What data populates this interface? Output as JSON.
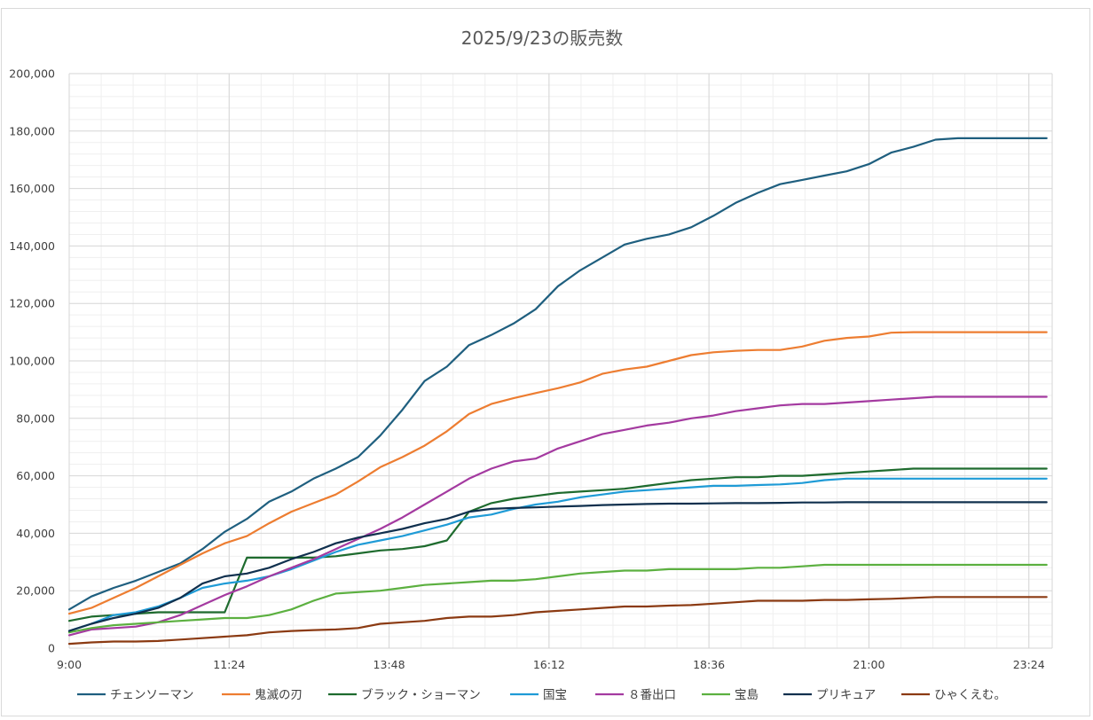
{
  "chart_data": {
    "type": "line",
    "title": "2025/9/23の販売数",
    "xlabel": "",
    "ylabel": "",
    "ylim": [
      0,
      200000
    ],
    "yticks": [
      0,
      20000,
      40000,
      60000,
      80000,
      100000,
      120000,
      140000,
      160000,
      180000,
      200000
    ],
    "ytick_labels": [
      "0",
      "20,000",
      "40,000",
      "60,000",
      "80,000",
      "100,000",
      "120,000",
      "140,000",
      "160,000",
      "180,000",
      "200,000"
    ],
    "xlim": [
      "9:00",
      "23:45"
    ],
    "xticks": [
      "9:00",
      "11:24",
      "13:48",
      "16:12",
      "18:36",
      "21:00",
      "23:24"
    ],
    "grid": true,
    "legend_position": "bottom",
    "x": [
      "9:00",
      "9:20",
      "9:40",
      "10:00",
      "10:20",
      "10:40",
      "11:00",
      "11:20",
      "11:40",
      "12:00",
      "12:20",
      "12:40",
      "13:00",
      "13:20",
      "13:40",
      "14:00",
      "14:20",
      "14:40",
      "15:00",
      "15:20",
      "15:40",
      "16:00",
      "16:20",
      "16:40",
      "17:00",
      "17:20",
      "17:40",
      "18:00",
      "18:20",
      "18:40",
      "19:00",
      "19:20",
      "19:40",
      "20:00",
      "20:20",
      "20:40",
      "21:00",
      "21:20",
      "21:40",
      "22:00",
      "22:20",
      "22:40",
      "23:00",
      "23:20",
      "23:40"
    ],
    "series": [
      {
        "name": "チェンソーマン",
        "color": "#1f5f7f",
        "values": [
          13500,
          18000,
          21000,
          23500,
          26500,
          29500,
          34500,
          40500,
          45000,
          51000,
          54500,
          59000,
          62500,
          66500,
          74000,
          83000,
          93000,
          98000,
          105500,
          109000,
          113000,
          118000,
          126000,
          131500,
          136000,
          140500,
          142500,
          144000,
          146500,
          150500,
          155000,
          158500,
          161500,
          163000,
          164500,
          166000,
          168500,
          172500,
          174500,
          177000,
          177500,
          177500,
          177500,
          177500,
          177500
        ]
      },
      {
        "name": "鬼滅の刃",
        "color": "#ed7d31",
        "values": [
          12000,
          14000,
          17500,
          21000,
          25000,
          29000,
          33000,
          36500,
          39000,
          43500,
          47500,
          50500,
          53500,
          58000,
          63000,
          66500,
          70500,
          75500,
          81500,
          85000,
          87000,
          88800,
          90500,
          92500,
          95500,
          97000,
          98000,
          100000,
          102000,
          103000,
          103500,
          103800,
          103800,
          105000,
          107000,
          108000,
          108500,
          109800,
          110000,
          110000,
          110000,
          110000,
          110000,
          110000,
          110000
        ]
      },
      {
        "name": "ブラック・ショーマン",
        "color": "#1e6b2e",
        "values": [
          9500,
          11000,
          11500,
          12000,
          12500,
          12500,
          12500,
          12500,
          31500,
          31500,
          31500,
          31500,
          32000,
          33000,
          34000,
          34500,
          35500,
          37500,
          47500,
          50500,
          52000,
          53000,
          54000,
          54500,
          55000,
          55500,
          56500,
          57500,
          58500,
          59000,
          59500,
          59500,
          60000,
          60000,
          60500,
          61000,
          61500,
          62000,
          62500,
          62500,
          62500,
          62500,
          62500,
          62500,
          62500
        ]
      },
      {
        "name": "国宝",
        "color": "#1f9bd6",
        "values": [
          6000,
          8500,
          11500,
          12500,
          14500,
          17500,
          21000,
          22500,
          23500,
          25000,
          27500,
          30500,
          33500,
          36000,
          37500,
          39000,
          41000,
          43000,
          45500,
          46500,
          48500,
          50000,
          51000,
          52500,
          53500,
          54500,
          55000,
          55500,
          56000,
          56500,
          56500,
          56800,
          57000,
          57500,
          58500,
          59000,
          59000,
          59000,
          59000,
          59000,
          59000,
          59000,
          59000,
          59000,
          59000
        ]
      },
      {
        "name": "８番出口",
        "color": "#a43aa0",
        "values": [
          4500,
          6500,
          7000,
          7500,
          9000,
          11500,
          15000,
          18500,
          21500,
          25000,
          28000,
          31000,
          34500,
          38000,
          41500,
          45500,
          50000,
          54500,
          59000,
          62500,
          65000,
          66000,
          69500,
          72000,
          74500,
          76000,
          77500,
          78500,
          80000,
          81000,
          82500,
          83500,
          84500,
          85000,
          85000,
          85500,
          86000,
          86500,
          87000,
          87500,
          87500,
          87500,
          87500,
          87500,
          87500
        ]
      },
      {
        "name": "宝島",
        "color": "#5cb040",
        "values": [
          5500,
          7000,
          8000,
          8500,
          9000,
          9500,
          10000,
          10500,
          10500,
          11500,
          13500,
          16500,
          19000,
          19500,
          20000,
          21000,
          22000,
          22500,
          23000,
          23500,
          23500,
          24000,
          25000,
          26000,
          26500,
          27000,
          27000,
          27500,
          27500,
          27500,
          27500,
          28000,
          28000,
          28500,
          29000,
          29000,
          29000,
          29000,
          29000,
          29000,
          29000,
          29000,
          29000,
          29000,
          29000
        ]
      },
      {
        "name": "プリキュア",
        "color": "#10304e",
        "values": [
          6000,
          8500,
          10500,
          12000,
          14000,
          17500,
          22500,
          25000,
          26000,
          28000,
          31000,
          33500,
          36500,
          38500,
          40000,
          41500,
          43500,
          45000,
          47500,
          48500,
          48800,
          49000,
          49300,
          49500,
          49800,
          50000,
          50200,
          50300,
          50300,
          50400,
          50500,
          50500,
          50600,
          50700,
          50700,
          50800,
          50800,
          50800,
          50800,
          50800,
          50800,
          50800,
          50800,
          50800,
          50800
        ]
      },
      {
        "name": "ひゃくえむ。",
        "color": "#8b3a12",
        "values": [
          1500,
          2000,
          2300,
          2300,
          2500,
          3000,
          3500,
          4000,
          4500,
          5500,
          6000,
          6300,
          6500,
          7000,
          8500,
          9000,
          9500,
          10500,
          11000,
          11000,
          11500,
          12500,
          13000,
          13500,
          14000,
          14500,
          14500,
          14800,
          15000,
          15500,
          16000,
          16500,
          16500,
          16500,
          16800,
          16800,
          17000,
          17200,
          17500,
          17800,
          17800,
          17800,
          17800,
          17800,
          17800
        ]
      }
    ]
  }
}
